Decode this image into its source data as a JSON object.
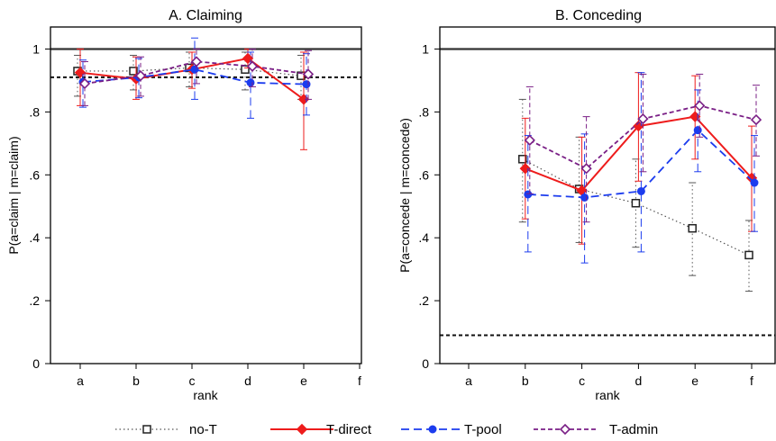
{
  "chart_data": {
    "type": "line",
    "series_styles": [
      {
        "name": "no-T",
        "color": "#555555",
        "dash": "1.5 3",
        "marker": "square",
        "width": 1.2
      },
      {
        "name": "T-direct",
        "color": "#ee1c1c",
        "dash": "",
        "marker": "diamond-filled",
        "width": 2
      },
      {
        "name": "T-pool",
        "color": "#1c3cee",
        "dash": "9 5",
        "marker": "circle-filled",
        "width": 1.8
      },
      {
        "name": "T-admin",
        "color": "#7a1f86",
        "dash": "5 3",
        "marker": "diamond-open",
        "width": 1.8
      }
    ],
    "reference_line_color": "#333333",
    "legend_position": "bottom",
    "panels": [
      {
        "title": "A. Claiming",
        "xlabel": "rank",
        "ylabel": "P(a=claim | m=claim)",
        "categories": [
          "a",
          "b",
          "c",
          "d",
          "e",
          "f"
        ],
        "ylim": [
          0,
          1.07
        ],
        "yticks": [
          0,
          0.2,
          0.4,
          0.6,
          0.8,
          1
        ],
        "ytick_labels": [
          "0",
          ".2",
          ".4",
          ".6",
          ".8",
          "1"
        ],
        "hline_solid": 1,
        "hline_dashed": 0.91,
        "series": [
          {
            "name": "no-T",
            "values": [
              0.93,
              0.93,
              0.94,
              0.935,
              0.915,
              null
            ],
            "ci_low": [
              0.85,
              0.87,
              0.88,
              0.87,
              0.84,
              null
            ],
            "ci_high": [
              0.98,
              0.98,
              0.99,
              0.99,
              0.98,
              null
            ]
          },
          {
            "name": "T-direct",
            "values": [
              0.925,
              0.905,
              0.935,
              0.97,
              0.84,
              null
            ],
            "ci_low": [
              0.82,
              0.84,
              0.875,
              0.94,
              0.68,
              null
            ],
            "ci_high": [
              1.0,
              0.975,
              0.99,
              1.0,
              0.99,
              null
            ]
          },
          {
            "name": "T-pool",
            "values": [
              0.895,
              0.91,
              0.935,
              0.893,
              0.888,
              null
            ],
            "ci_low": [
              0.815,
              0.845,
              0.84,
              0.78,
              0.79,
              null
            ],
            "ci_high": [
              0.965,
              0.97,
              1.035,
              0.99,
              0.985,
              null
            ]
          },
          {
            "name": "T-admin",
            "values": [
              0.89,
              0.915,
              0.96,
              0.945,
              0.92,
              null
            ],
            "ci_low": [
              0.82,
              0.85,
              0.89,
              0.88,
              0.84,
              null
            ],
            "ci_high": [
              0.96,
              0.975,
              1.0,
              1.0,
              0.995,
              null
            ]
          }
        ]
      },
      {
        "title": "B. Conceding",
        "xlabel": "rank",
        "ylabel": "P(a=concede | m=concede)",
        "categories": [
          "a",
          "b",
          "c",
          "d",
          "e",
          "f"
        ],
        "ylim": [
          0,
          1.07
        ],
        "yticks": [
          0,
          0.2,
          0.4,
          0.6,
          0.8,
          1
        ],
        "ytick_labels": [
          "0",
          ".2",
          ".4",
          ".6",
          ".8",
          "1"
        ],
        "hline_solid": 1,
        "hline_dashed": 0.09,
        "series": [
          {
            "name": "no-T",
            "values": [
              null,
              0.65,
              0.555,
              0.51,
              0.43,
              0.345
            ],
            "ci_low": [
              null,
              0.45,
              0.385,
              0.37,
              0.28,
              0.23
            ],
            "ci_high": [
              null,
              0.84,
              0.72,
              0.65,
              0.575,
              0.455
            ]
          },
          {
            "name": "T-direct",
            "values": [
              null,
              0.62,
              0.55,
              0.755,
              0.785,
              0.59
            ],
            "ci_low": [
              null,
              0.46,
              0.38,
              0.58,
              0.65,
              0.42
            ],
            "ci_high": [
              null,
              0.78,
              0.72,
              0.925,
              0.915,
              0.755
            ]
          },
          {
            "name": "T-pool",
            "values": [
              null,
              0.538,
              0.528,
              0.548,
              0.742,
              0.575
            ],
            "ci_low": [
              null,
              0.355,
              0.32,
              0.355,
              0.61,
              0.42
            ],
            "ci_high": [
              null,
              0.725,
              0.73,
              0.925,
              0.87,
              0.725
            ]
          },
          {
            "name": "T-admin",
            "values": [
              null,
              0.71,
              0.62,
              0.778,
              0.82,
              0.775
            ],
            "ci_low": [
              null,
              0.54,
              0.45,
              0.61,
              0.72,
              0.66
            ],
            "ci_high": [
              null,
              0.88,
              0.785,
              0.92,
              0.92,
              0.885
            ]
          }
        ]
      }
    ]
  }
}
